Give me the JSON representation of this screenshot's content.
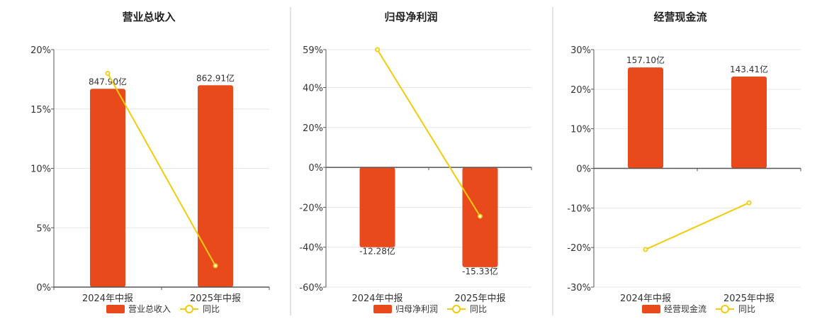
{
  "chart_data": [
    {
      "type": "bar",
      "title": "营业总收入",
      "categories": [
        "2024年中报",
        "2025年中报"
      ],
      "bar_labels": [
        "847.90亿",
        "862.91亿"
      ],
      "yoy_percent": [
        18.0,
        1.8
      ],
      "bar_heights_percent": [
        16.7,
        17.0
      ],
      "ylim": [
        0,
        20
      ],
      "yticks": [
        "20%",
        "15%",
        "10%",
        "5%",
        "0%"
      ],
      "ytick_values": [
        20,
        15,
        10,
        5,
        0
      ],
      "legend": [
        "营业总收入",
        "同比"
      ],
      "grid": true,
      "legend_position": "bottom"
    },
    {
      "type": "bar",
      "title": "归母净利润",
      "categories": [
        "2024年中报",
        "2025年中报"
      ],
      "bar_labels": [
        "-12.28亿",
        "-15.33亿"
      ],
      "yoy_percent": [
        59.0,
        -24.5
      ],
      "bar_heights_percent": [
        -40.0,
        -50.0
      ],
      "ylim": [
        -60,
        59
      ],
      "yticks": [
        "59%",
        "40%",
        "20%",
        "0%",
        "-20%",
        "-40%",
        "-60%"
      ],
      "ytick_values": [
        59,
        40,
        20,
        0,
        -20,
        -40,
        -60
      ],
      "legend": [
        "归母净利润",
        "同比"
      ],
      "grid": true,
      "legend_position": "bottom"
    },
    {
      "type": "bar",
      "title": "经营现金流",
      "categories": [
        "2024年中报",
        "2025年中报"
      ],
      "bar_labels": [
        "157.10亿",
        "143.41亿"
      ],
      "yoy_percent": [
        -20.5,
        -8.7
      ],
      "bar_heights_percent": [
        25.5,
        23.2
      ],
      "ylim": [
        -30,
        30
      ],
      "yticks": [
        "30%",
        "20%",
        "10%",
        "0%",
        "-10%",
        "-20%",
        "-30%"
      ],
      "ytick_values": [
        30,
        20,
        10,
        0,
        -10,
        -20,
        -30
      ],
      "legend": [
        "经营现金流",
        "同比"
      ],
      "grid": true,
      "legend_position": "bottom"
    }
  ],
  "colors": {
    "bar": "#e84a1c",
    "line": "#f2cc0c",
    "grid": "#e6e6e6",
    "axis": "#555555",
    "divider": "#c8c8c8"
  }
}
